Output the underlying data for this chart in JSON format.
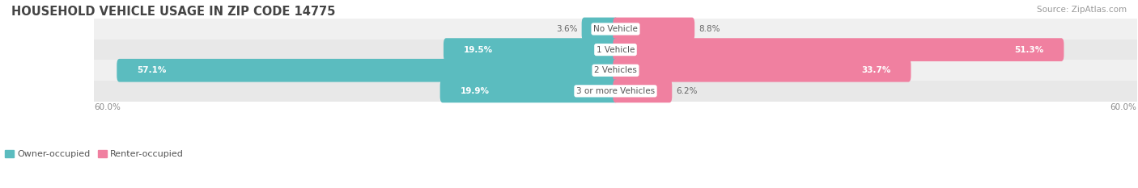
{
  "title": "HOUSEHOLD VEHICLE USAGE IN ZIP CODE 14775",
  "source": "Source: ZipAtlas.com",
  "categories": [
    "No Vehicle",
    "1 Vehicle",
    "2 Vehicles",
    "3 or more Vehicles"
  ],
  "owner_values": [
    3.6,
    19.5,
    57.1,
    19.9
  ],
  "renter_values": [
    8.8,
    51.3,
    33.7,
    6.2
  ],
  "max_value": 60.0,
  "owner_color": "#5bbcbf",
  "renter_color": "#f080a0",
  "row_bg_colors": [
    "#f0f0f0",
    "#e8e8e8"
  ],
  "axis_label_left": "60.0%",
  "axis_label_right": "60.0%",
  "title_fontsize": 10.5,
  "source_fontsize": 7.5,
  "bar_label_fontsize": 7.5,
  "cat_label_fontsize": 7.5,
  "legend_fontsize": 8,
  "axis_tick_fontsize": 7.5,
  "owner_legend": "Owner-occupied",
  "renter_legend": "Renter-occupied"
}
